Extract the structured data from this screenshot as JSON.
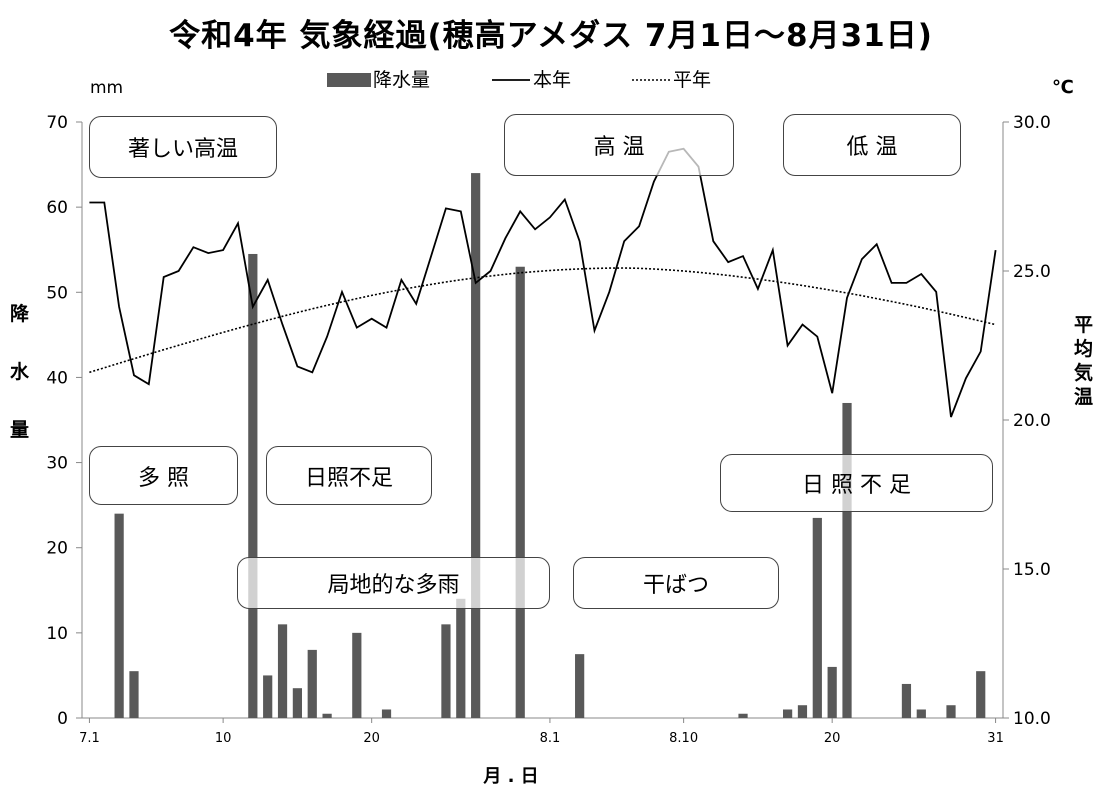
{
  "title": "令和4年 気象経過(穂高アメダス 7月1日～8月31日)",
  "chart_data": {
    "type": "bar+line",
    "left_unit": "mm",
    "right_unit": "℃",
    "left_axis_label": [
      "降",
      "水",
      "量"
    ],
    "right_axis_label": [
      "平",
      "均",
      "気",
      "温"
    ],
    "xlabel": "月 . 日",
    "left_ylim": [
      0,
      70
    ],
    "left_ticks": [
      "0",
      "10",
      "20",
      "30",
      "40",
      "50",
      "60",
      "70"
    ],
    "right_ylim": [
      10,
      30
    ],
    "right_ticks": [
      "10.0",
      "15.0",
      "20.0",
      "25.0",
      "30.0"
    ],
    "x_ticks": [
      {
        "day": 1,
        "label": "7.1"
      },
      {
        "day": 10,
        "label": "10"
      },
      {
        "day": 20,
        "label": "20"
      },
      {
        "day": 32,
        "label": "8.1"
      },
      {
        "day": 41,
        "label": "8.10"
      },
      {
        "day": 51,
        "label": "20"
      },
      {
        "day": 62,
        "label": "31"
      }
    ],
    "legend": {
      "precip": "降水量",
      "temp": "本年",
      "normal": "平年"
    },
    "days": 62,
    "precip": [
      0,
      0,
      24,
      5.5,
      0,
      0,
      0,
      0,
      0,
      0,
      0,
      54.5,
      5,
      11,
      3.5,
      8,
      0.5,
      0,
      10,
      0,
      1,
      0,
      0,
      0,
      11,
      14,
      64,
      0,
      0,
      53,
      0,
      0,
      0,
      7.5,
      0,
      0,
      0,
      0,
      0,
      0,
      0,
      0,
      0,
      0,
      0.5,
      0,
      0,
      1,
      1.5,
      23.5,
      6,
      37,
      0,
      0,
      0,
      4,
      1,
      0,
      1.5,
      0,
      5.5,
      0
    ],
    "temp": [
      27.3,
      27.3,
      23.8,
      21.5,
      21.2,
      24.8,
      25.0,
      25.8,
      25.6,
      25.7,
      26.6,
      23.8,
      24.7,
      23.2,
      21.8,
      21.6,
      22.8,
      24.3,
      23.1,
      23.4,
      23.1,
      24.7,
      23.9,
      25.5,
      27.1,
      27.0,
      24.6,
      25.0,
      26.1,
      27.0,
      26.4,
      26.8,
      27.4,
      26.0,
      23.0,
      24.3,
      26.0,
      26.5,
      28.0,
      29.0,
      29.1,
      28.5,
      26.0,
      25.3,
      25.5,
      24.4,
      25.7,
      22.5,
      23.2,
      22.8,
      20.9,
      24.1,
      25.4,
      25.9,
      24.6,
      24.6,
      24.9,
      24.3,
      20.1,
      21.4,
      22.3,
      25.7
    ],
    "normal_start": 21.6,
    "normal_peak": 25.1,
    "normal_end": 23.2,
    "annotations": [
      "著しい高温",
      "高 温",
      "低 温",
      "多 照",
      "日照不足",
      "日 照 不 足",
      "局地的な多雨",
      "干ばつ"
    ]
  }
}
